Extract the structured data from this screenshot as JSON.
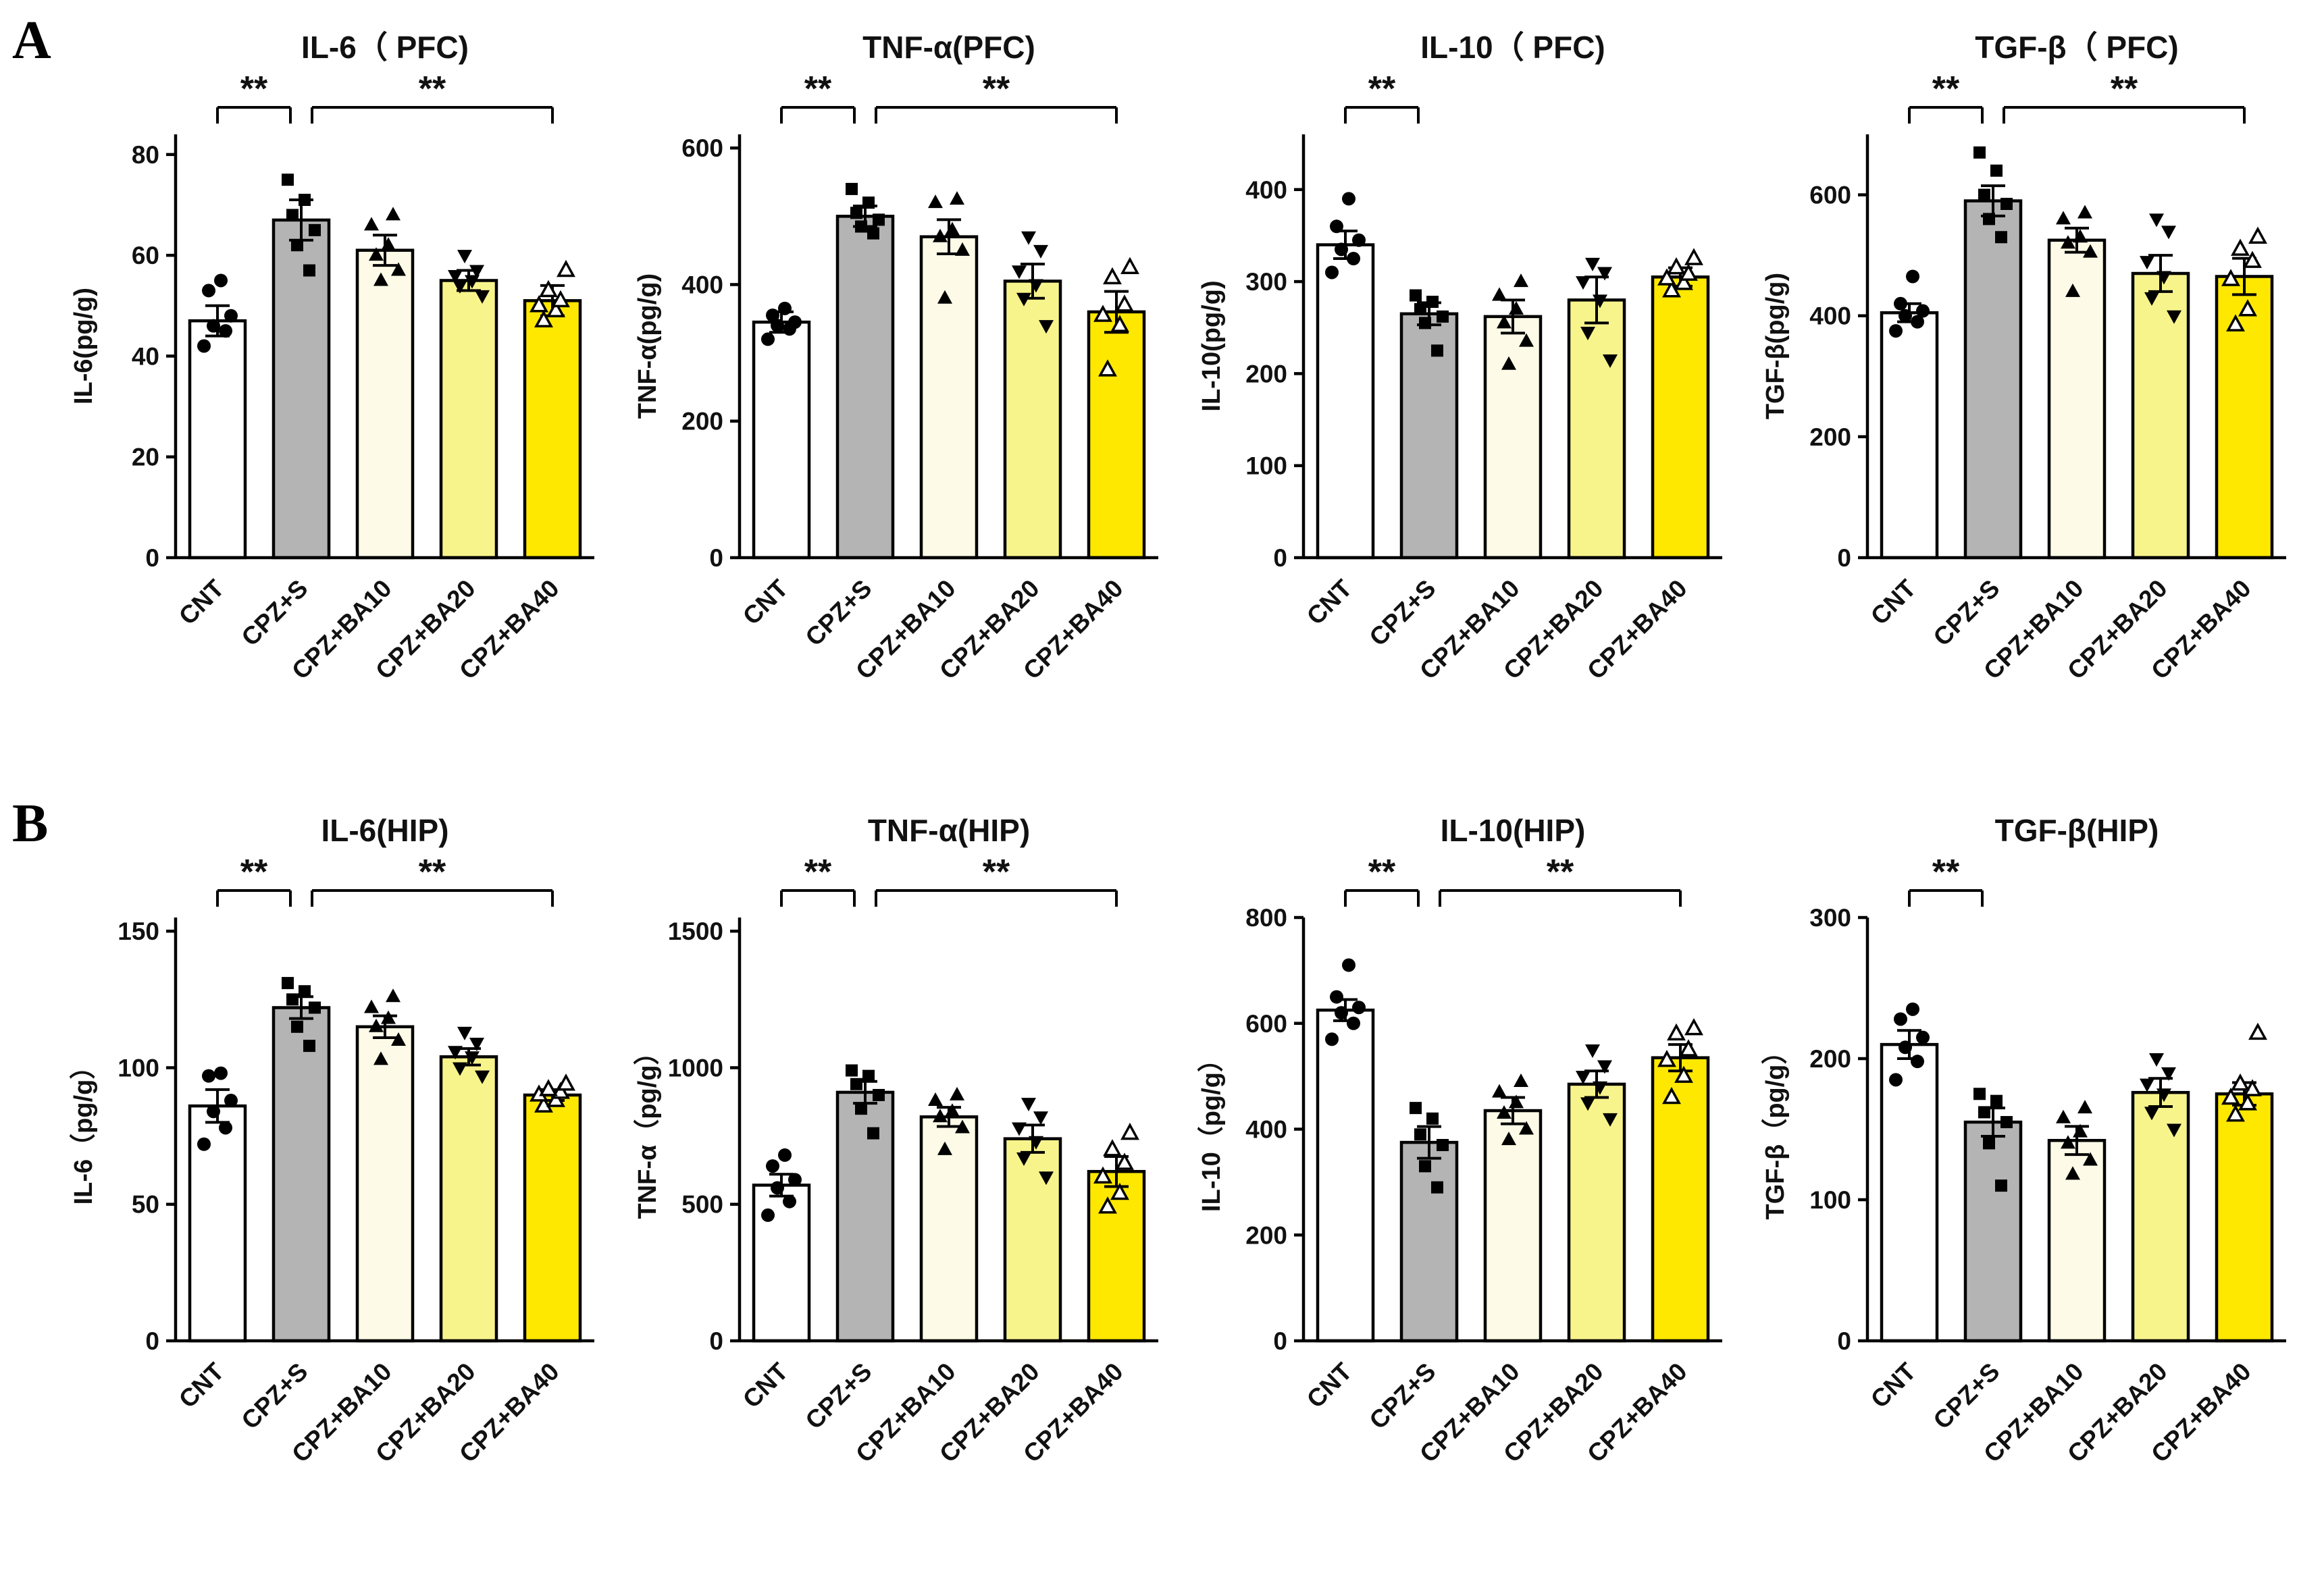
{
  "panels": [
    {
      "label": "A"
    },
    {
      "label": "B"
    }
  ],
  "style": {
    "bar_colors": [
      "#ffffff",
      "#b4b4b4",
      "#fdfbe7",
      "#f8f48c",
      "#ffe800"
    ],
    "markers": [
      "circle-filled",
      "square-filled",
      "triangle-up-filled",
      "triangle-down-filled",
      "triangle-up-open"
    ],
    "axis_color": "#000000",
    "significance_label": "**"
  },
  "chart_data": [
    {
      "type": "bar",
      "title": "IL-6（ PFC)",
      "ylabel": "IL-6(pg/g)",
      "categories": [
        "CNT",
        "CPZ+S",
        "CPZ+BA10",
        "CPZ+BA20",
        "CPZ+BA40"
      ],
      "values": [
        47,
        67,
        61,
        55,
        51
      ],
      "errors": [
        3,
        4,
        3,
        2,
        3
      ],
      "points": [
        [
          42,
          45,
          46,
          48,
          53,
          55
        ],
        [
          57,
          62,
          65,
          68,
          71,
          75
        ],
        [
          55,
          57,
          60,
          62,
          66,
          68
        ],
        [
          52,
          54,
          55,
          56,
          57,
          60
        ],
        [
          47,
          49,
          50,
          51,
          53,
          57
        ]
      ],
      "ylim": [
        0,
        84
      ],
      "yticks": [
        0,
        20,
        40,
        60,
        80
      ],
      "sig": [
        {
          "a": 0,
          "b": 1,
          "label": "**"
        },
        {
          "a": 1,
          "b": 4,
          "label": "**"
        }
      ]
    },
    {
      "type": "bar",
      "title": "TNF-α(PFC)",
      "ylabel": "TNF-α(pg/g)",
      "categories": [
        "CNT",
        "CPZ+S",
        "CPZ+BA10",
        "CPZ+BA20",
        "CPZ+BA40"
      ],
      "values": [
        345,
        500,
        470,
        405,
        360
      ],
      "errors": [
        15,
        15,
        25,
        25,
        30
      ],
      "points": [
        [
          320,
          335,
          340,
          345,
          355,
          365
        ],
        [
          475,
          485,
          495,
          505,
          520,
          540
        ],
        [
          380,
          450,
          470,
          480,
          520,
          525
        ],
        [
          340,
          380,
          400,
          420,
          450,
          470
        ],
        [
          275,
          340,
          355,
          370,
          410,
          425
        ]
      ],
      "ylim": [
        0,
        620
      ],
      "yticks": [
        0,
        200,
        400,
        600
      ],
      "sig": [
        {
          "a": 0,
          "b": 1,
          "label": "**"
        },
        {
          "a": 1,
          "b": 4,
          "label": "**"
        }
      ]
    },
    {
      "type": "bar",
      "title": "IL-10（ PFC)",
      "ylabel": "IL-10(pg/g)",
      "categories": [
        "CNT",
        "CPZ+S",
        "CPZ+BA10",
        "CPZ+BA20",
        "CPZ+BA40"
      ],
      "values": [
        340,
        265,
        262,
        280,
        305
      ],
      "errors": [
        15,
        12,
        18,
        25,
        10
      ],
      "points": [
        [
          310,
          325,
          335,
          345,
          360,
          390
        ],
        [
          225,
          255,
          262,
          270,
          278,
          285
        ],
        [
          210,
          235,
          255,
          270,
          285,
          300
        ],
        [
          215,
          245,
          280,
          300,
          310,
          320
        ],
        [
          290,
          298,
          303,
          308,
          315,
          325
        ]
      ],
      "ylim": [
        0,
        460
      ],
      "yticks": [
        0,
        100,
        200,
        300,
        400
      ],
      "sig": [
        {
          "a": 0,
          "b": 1,
          "label": "**"
        }
      ]
    },
    {
      "type": "bar",
      "title": "TGF-β（ PFC)",
      "ylabel": "TGF-β(pg/g)",
      "categories": [
        "CNT",
        "CPZ+S",
        "CPZ+BA10",
        "CPZ+BA20",
        "CPZ+BA40"
      ],
      "values": [
        405,
        590,
        525,
        470,
        465
      ],
      "errors": [
        15,
        25,
        20,
        30,
        30
      ],
      "points": [
        [
          375,
          390,
          400,
          408,
          420,
          465
        ],
        [
          530,
          560,
          585,
          600,
          640,
          670
        ],
        [
          440,
          505,
          520,
          530,
          560,
          570
        ],
        [
          400,
          430,
          465,
          490,
          540,
          560
        ],
        [
          385,
          410,
          460,
          490,
          510,
          530
        ]
      ],
      "ylim": [
        0,
        700
      ],
      "yticks": [
        0,
        200,
        400,
        600
      ],
      "sig": [
        {
          "a": 0,
          "b": 1,
          "label": "**"
        },
        {
          "a": 1,
          "b": 4,
          "label": "**"
        }
      ]
    },
    {
      "type": "bar",
      "title": "IL-6(HIP)",
      "ylabel": "IL-6（pg/g）",
      "categories": [
        "CNT",
        "CPZ+S",
        "CPZ+BA10",
        "CPZ+BA20",
        "CPZ+BA40"
      ],
      "values": [
        86,
        122,
        115,
        104,
        90
      ],
      "errors": [
        6,
        4,
        4,
        3,
        2
      ],
      "points": [
        [
          72,
          78,
          84,
          88,
          97,
          98
        ],
        [
          108,
          115,
          122,
          125,
          128,
          131
        ],
        [
          103,
          110,
          115,
          118,
          122,
          126
        ],
        [
          97,
          100,
          104,
          106,
          109,
          113
        ],
        [
          86,
          88,
          90,
          91,
          92,
          94
        ]
      ],
      "ylim": [
        0,
        155
      ],
      "yticks": [
        0,
        50,
        100,
        150
      ],
      "sig": [
        {
          "a": 0,
          "b": 1,
          "label": "**"
        },
        {
          "a": 1,
          "b": 4,
          "label": "**"
        }
      ]
    },
    {
      "type": "bar",
      "title": "TNF-α(HIP)",
      "ylabel": "TNF-α（pg/g）",
      "categories": [
        "CNT",
        "CPZ+S",
        "CPZ+BA10",
        "CPZ+BA20",
        "CPZ+BA40"
      ],
      "values": [
        570,
        910,
        820,
        740,
        620
      ],
      "errors": [
        40,
        40,
        35,
        50,
        55
      ],
      "points": [
        [
          460,
          510,
          560,
          590,
          640,
          680
        ],
        [
          760,
          850,
          900,
          940,
          970,
          990
        ],
        [
          700,
          780,
          820,
          840,
          880,
          900
        ],
        [
          600,
          670,
          730,
          780,
          820,
          870
        ],
        [
          490,
          540,
          600,
          650,
          700,
          760
        ]
      ],
      "ylim": [
        0,
        1550
      ],
      "yticks": [
        0,
        500,
        1000,
        1500
      ],
      "sig": [
        {
          "a": 0,
          "b": 1,
          "label": "**"
        },
        {
          "a": 1,
          "b": 4,
          "label": "**"
        }
      ]
    },
    {
      "type": "bar",
      "title": "IL-10(HIP)",
      "ylabel": "IL-10（pg/g）",
      "categories": [
        "CNT",
        "CPZ+S",
        "CPZ+BA10",
        "CPZ+BA20",
        "CPZ+BA40"
      ],
      "values": [
        625,
        375,
        435,
        485,
        535
      ],
      "errors": [
        20,
        30,
        25,
        25,
        25
      ],
      "points": [
        [
          570,
          600,
          620,
          630,
          650,
          710
        ],
        [
          290,
          330,
          370,
          390,
          420,
          440
        ],
        [
          380,
          400,
          430,
          450,
          470,
          490
        ],
        [
          420,
          450,
          480,
          500,
          520,
          550
        ],
        [
          460,
          500,
          530,
          550,
          580,
          590
        ]
      ],
      "ylim": [
        0,
        800
      ],
      "yticks": [
        0,
        200,
        400,
        600,
        800
      ],
      "sig": [
        {
          "a": 0,
          "b": 1,
          "label": "**"
        },
        {
          "a": 1,
          "b": 4,
          "label": "**"
        }
      ]
    },
    {
      "type": "bar",
      "title": "TGF-β(HIP)",
      "ylabel": "TGF-β（pg/g）",
      "categories": [
        "CNT",
        "CPZ+S",
        "CPZ+BA10",
        "CPZ+BA20",
        "CPZ+BA40"
      ],
      "values": [
        210,
        155,
        142,
        176,
        175
      ],
      "errors": [
        10,
        10,
        10,
        10,
        8
      ],
      "points": [
        [
          185,
          198,
          208,
          215,
          228,
          235
        ],
        [
          110,
          140,
          155,
          162,
          170,
          175
        ],
        [
          118,
          128,
          140,
          148,
          158,
          165
        ],
        [
          150,
          162,
          175,
          182,
          190,
          200
        ],
        [
          160,
          168,
          172,
          178,
          182,
          218
        ]
      ],
      "ylim": [
        0,
        300
      ],
      "yticks": [
        0,
        100,
        200,
        300
      ],
      "sig": [
        {
          "a": 0,
          "b": 1,
          "label": "**"
        }
      ]
    }
  ]
}
